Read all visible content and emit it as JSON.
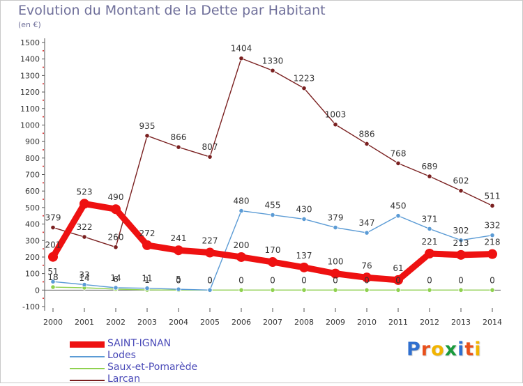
{
  "chart_data": {
    "type": "line",
    "title": "Evolution du Montant de la Dette par Habitant",
    "unit_label": "(en €)",
    "categories": [
      "2000",
      "2001",
      "2002",
      "2003",
      "2004",
      "2005",
      "2006",
      "2007",
      "2008",
      "2009",
      "2010",
      "2011",
      "2012",
      "2013",
      "2014"
    ],
    "ylim": [
      -100,
      1500
    ],
    "yticks": [
      -100,
      0,
      100,
      200,
      300,
      400,
      500,
      600,
      700,
      800,
      900,
      1000,
      1100,
      1200,
      1300,
      1400,
      1500
    ],
    "grid": false,
    "legend_position": "bottom-left",
    "series": [
      {
        "name": "SAINT-IGNAN",
        "color": "#ee1111",
        "values": [
          201,
          523,
          490,
          272,
          241,
          227,
          200,
          170,
          137,
          100,
          76,
          61,
          221,
          213,
          218
        ]
      },
      {
        "name": "Lodes",
        "color": "#5b9bd5",
        "values": [
          51,
          33,
          14,
          11,
          5,
          0,
          480,
          455,
          430,
          379,
          347,
          450,
          371,
          302,
          332
        ]
      },
      {
        "name": "Saux-et-Pomarède",
        "color": "#8fd14f",
        "values": [
          18,
          14,
          6,
          1,
          0,
          0,
          0,
          0,
          0,
          0,
          0,
          0,
          0,
          0,
          0
        ]
      },
      {
        "name": "Larcan",
        "color": "#7a2020",
        "values": [
          379,
          322,
          260,
          935,
          866,
          807,
          1404,
          1330,
          1223,
          1003,
          886,
          768,
          689,
          602,
          511
        ]
      }
    ]
  },
  "logo": {
    "letters": [
      "P",
      "r",
      "o",
      "x",
      "i",
      "t",
      "i"
    ],
    "colors": [
      "#2f6fcf",
      "#e8501c",
      "#f2b400",
      "#1a9a3c",
      "#2f6fcf",
      "#e8501c",
      "#f2b400"
    ]
  }
}
